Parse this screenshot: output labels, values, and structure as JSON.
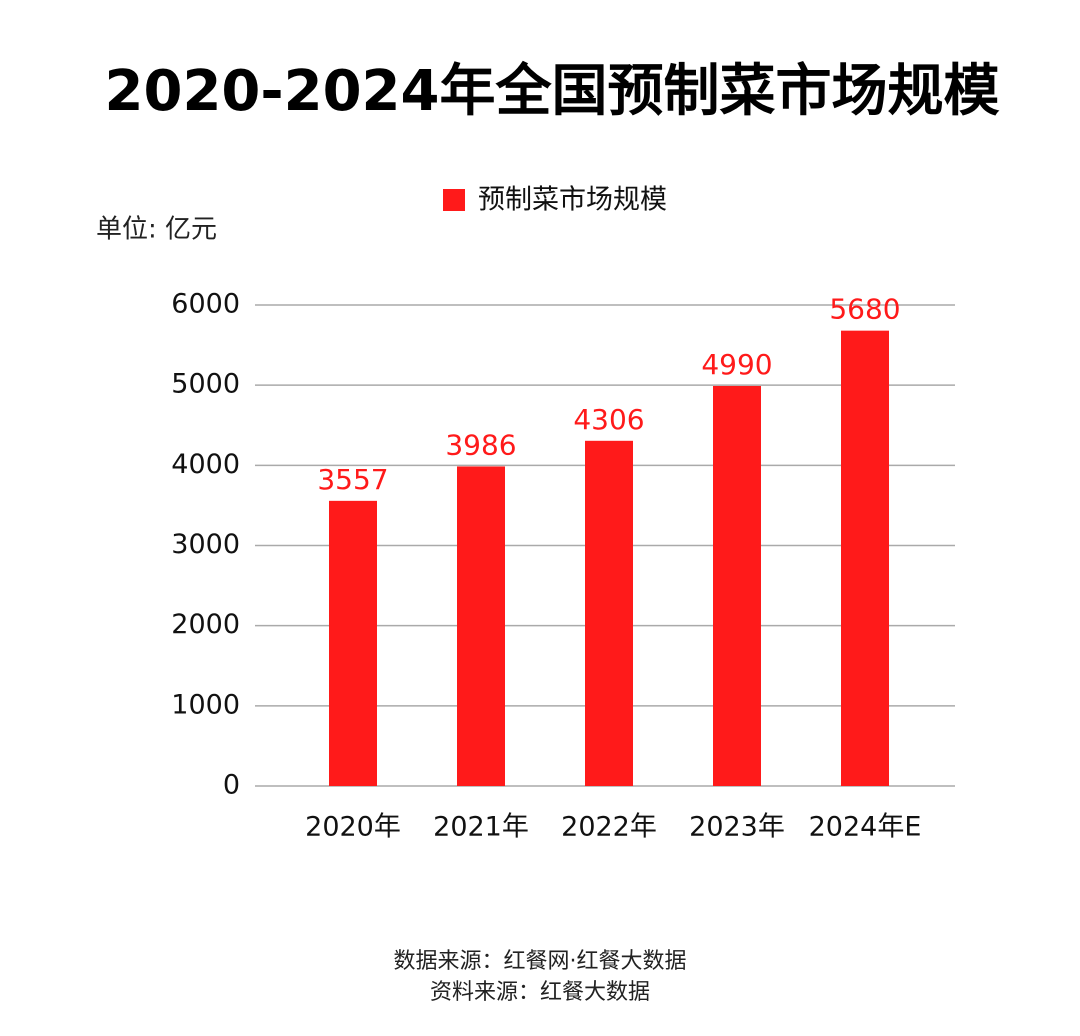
{
  "chart_data": {
    "type": "bar",
    "title": "2020-2024年全国预制菜市场规模",
    "y_axis_label": "单位: 亿元",
    "categories": [
      "2020年",
      "2021年",
      "2022年",
      "2023年",
      "2024年E"
    ],
    "series": [
      {
        "name": "预制菜市场规模",
        "color": "#ff1a1a",
        "values": [
          3557,
          3986,
          4306,
          4990,
          5680
        ]
      }
    ],
    "ylim": [
      0,
      6000
    ],
    "yticks": [
      0,
      1000,
      2000,
      3000,
      4000,
      5000,
      6000
    ],
    "grid": true,
    "legend": "top",
    "sources": [
      "数据来源：红餐网·红餐大数据",
      "资料来源：红餐大数据"
    ]
  }
}
